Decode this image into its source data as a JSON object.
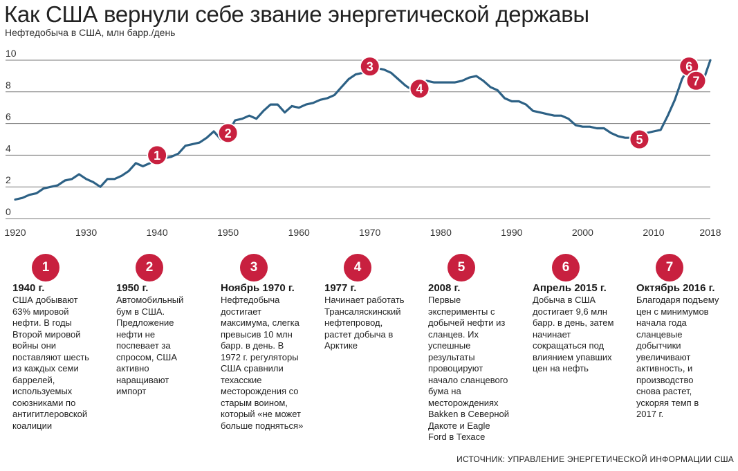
{
  "title": "Как США вернули себе звание энергетической державы",
  "subtitle": "Нефтедобыча в США, млн барр./день",
  "source": "ИСТОЧНИК: УПРАВЛЕНИЕ ЭНЕРГЕТИЧЕСКОЙ ИНФОРМАЦИИ США",
  "colors": {
    "line": "#2d6185",
    "marker": "#c8203f",
    "grid": "#7a7a7a"
  },
  "chart_data": {
    "type": "line",
    "ylabel": "Нефтедобыча в США, млн барр./день",
    "ylim": [
      0,
      10
    ],
    "yticks": [
      0,
      2,
      4,
      6,
      8,
      10
    ],
    "xlim": [
      1920,
      2018
    ],
    "xticks": [
      1920,
      1930,
      1940,
      1950,
      1960,
      1970,
      1980,
      1990,
      2000,
      2010,
      2018
    ],
    "grid": true,
    "series": [
      {
        "x": [
          1920,
          1921,
          1922,
          1923,
          1924,
          1925,
          1926,
          1927,
          1928,
          1929,
          1930,
          1931,
          1932,
          1933,
          1934,
          1935,
          1936,
          1937,
          1938,
          1939,
          1940,
          1941,
          1942,
          1943,
          1944,
          1945,
          1946,
          1947,
          1948,
          1949,
          1950,
          1951,
          1952,
          1953,
          1954,
          1955,
          1956,
          1957,
          1958,
          1959,
          1960,
          1961,
          1962,
          1963,
          1964,
          1965,
          1966,
          1967,
          1968,
          1969,
          1970,
          1971,
          1972,
          1973,
          1974,
          1975,
          1976,
          1977,
          1978,
          1979,
          1980,
          1981,
          1982,
          1983,
          1984,
          1985,
          1986,
          1987,
          1988,
          1989,
          1990,
          1991,
          1992,
          1993,
          1994,
          1995,
          1996,
          1997,
          1998,
          1999,
          2000,
          2001,
          2002,
          2003,
          2004,
          2005,
          2006,
          2007,
          2008,
          2009,
          2010,
          2011,
          2012,
          2013,
          2014,
          2015,
          2016,
          2017,
          2018
        ],
        "values": [
          1.2,
          1.3,
          1.5,
          1.6,
          1.9,
          2.0,
          2.1,
          2.4,
          2.5,
          2.8,
          2.5,
          2.3,
          2.0,
          2.5,
          2.5,
          2.7,
          3.0,
          3.5,
          3.3,
          3.5,
          4.0,
          3.8,
          3.9,
          4.1,
          4.6,
          4.7,
          4.8,
          5.1,
          5.5,
          5.0,
          5.4,
          6.2,
          6.3,
          6.5,
          6.3,
          6.8,
          7.2,
          7.2,
          6.7,
          7.1,
          7.0,
          7.2,
          7.3,
          7.5,
          7.6,
          7.8,
          8.3,
          8.8,
          9.1,
          9.2,
          9.6,
          9.5,
          9.4,
          9.2,
          8.8,
          8.4,
          8.1,
          8.2,
          8.7,
          8.6,
          8.6,
          8.6,
          8.6,
          8.7,
          8.9,
          9.0,
          8.7,
          8.3,
          8.1,
          7.6,
          7.4,
          7.4,
          7.2,
          6.8,
          6.7,
          6.6,
          6.5,
          6.5,
          6.3,
          5.9,
          5.8,
          5.8,
          5.7,
          5.7,
          5.4,
          5.2,
          5.1,
          5.1,
          5.0,
          5.4,
          5.5,
          5.6,
          6.5,
          7.5,
          8.8,
          9.6,
          9.2,
          8.7,
          10.0
        ]
      }
    ],
    "markers": [
      {
        "number": "1",
        "x": 1940,
        "y": 4.0
      },
      {
        "number": "2",
        "x": 1950,
        "y": 5.4
      },
      {
        "number": "3",
        "x": 1970,
        "y": 9.6
      },
      {
        "number": "4",
        "x": 1977,
        "y": 8.2
      },
      {
        "number": "5",
        "x": 2008,
        "y": 5.0
      },
      {
        "number": "6",
        "x": 2015,
        "y": 9.6
      },
      {
        "number": "7",
        "x": 2016,
        "y": 8.7
      }
    ]
  },
  "annotations": [
    {
      "number": "1",
      "heading": "1940 г.",
      "text": "США добывают\n63% мировой\nнефти. В годы\nВторой мировой\nвойны они\nпоставляют шесть\nиз каждых семи\nбаррелей,\nиспользуемых\nсоюзниками по\nантигитлеровской\nкоалиции"
    },
    {
      "number": "2",
      "heading": "1950 г.",
      "text": "Автомобильный\nбум в США.\nПредложение\nнефти не\nпоспевает за\nспросом, США\nактивно\nнаращивают\nимпорт"
    },
    {
      "number": "3",
      "heading": "Ноябрь 1970 г.",
      "text": "Нефтедобыча\nдостигает\nмаксимума, слегка\nпревысив 10 млн\nбарр. в день. В\n1972 г. регуляторы\nСША сравнили\nтехасские\nместорождения со\nстарым воином,\nкоторый «не может\nбольше подняться»"
    },
    {
      "number": "4",
      "heading": "1977 г.",
      "text": "Начинает работать\nТрансаляскинский\nнефтепровод,\nрастет добыча в\nАрктике"
    },
    {
      "number": "5",
      "heading": "2008 г.",
      "text": "Первые\nэксперименты с\nдобычей нефти из\nсланцев. Их\nуспешные\nрезультаты\nпровоцируют\nначало сланцевого\nбума на\nместорождениях\nBakken в Северной\nДакоте и Eagle\nFord в Техасе"
    },
    {
      "number": "6",
      "heading": "Апрель 2015 г.",
      "text": "Добыча в США\nдостигает 9,6 млн\nбарр. в день, затем\nначинает\nсокращаться под\nвлиянием упавших\nцен на нефть"
    },
    {
      "number": "7",
      "heading": "Октябрь 2016 г.",
      "text": "Благодаря подъему\nцен с минимумов\nначала года\nсланцевые\nдобытчики\nувеличивают\nактивность, и\nпроизводство\nснова растет,\nускоряя темп в\n2017 г."
    }
  ]
}
